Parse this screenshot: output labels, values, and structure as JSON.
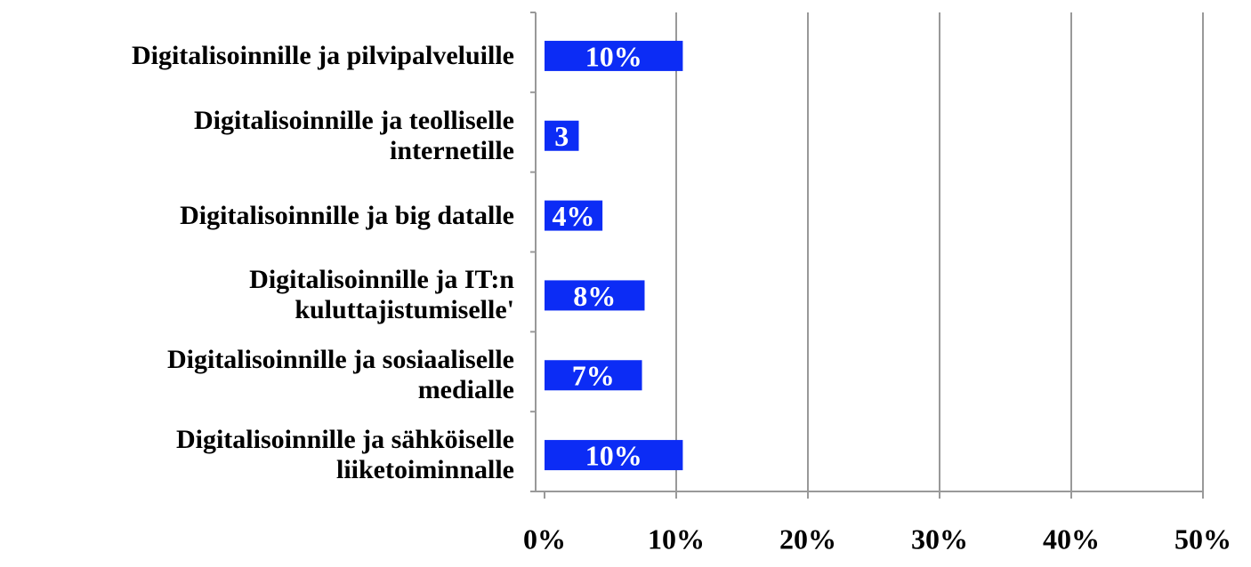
{
  "chart_data": {
    "type": "barh",
    "categories": [
      "Digitalisoinnille ja pilvipalveluille",
      "Digitalisoinnille ja teolliselle\ninternetille",
      "Digitalisoinnille ja big datalle",
      "Digitalisoinnille ja IT:n\nkuluttajistumiselle'",
      "Digitalisoinnille ja sosiaaliselle\nmedialle",
      "Digitalisoinnille ja sähköiselle\nliiketoiminnalle"
    ],
    "values": [
      10.5,
      2.6,
      4.4,
      7.6,
      7.4,
      10.5
    ],
    "value_labels": [
      "10%",
      "3",
      "4%",
      "8%",
      "7%",
      "10%"
    ],
    "color": "#0c2cf5",
    "xlim": [
      0,
      50
    ],
    "xticks": [
      {
        "value": 0,
        "label": "0%"
      },
      {
        "value": 10,
        "label": "10%"
      },
      {
        "value": 20,
        "label": "20%"
      },
      {
        "value": 30,
        "label": "30%"
      },
      {
        "value": 40,
        "label": "40%"
      },
      {
        "value": 50,
        "label": "50%"
      }
    ],
    "grid": true
  }
}
